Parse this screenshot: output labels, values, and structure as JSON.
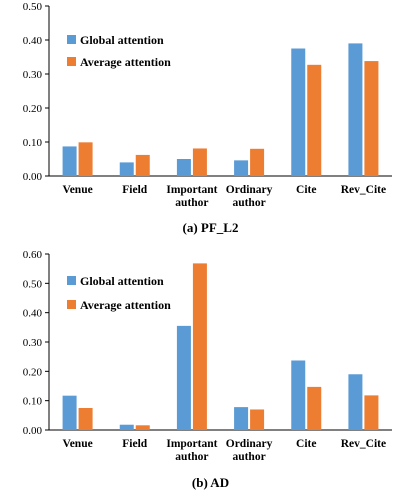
{
  "chart_data": [
    {
      "type": "bar",
      "caption": "(a) PF_L2",
      "categories": [
        "Venue",
        "Field",
        "Important author",
        "Ordinary author",
        "Cite",
        "Rev_Cite"
      ],
      "category_lines": [
        [
          "Venue"
        ],
        [
          "Field"
        ],
        [
          "Important",
          "author"
        ],
        [
          "Ordinary",
          "author"
        ],
        [
          "Cite"
        ],
        [
          "Rev_Cite"
        ]
      ],
      "series": [
        {
          "name": "Global attention",
          "color": "#5b9bd5",
          "values": [
            0.087,
            0.04,
            0.05,
            0.046,
            0.375,
            0.39
          ]
        },
        {
          "name": "Average attention",
          "color": "#ed7d31",
          "values": [
            0.099,
            0.062,
            0.081,
            0.08,
            0.327,
            0.338
          ]
        }
      ],
      "ylim": [
        0,
        0.5
      ],
      "yticks": [
        "0.00",
        "0.10",
        "0.20",
        "0.30",
        "0.40",
        "0.50"
      ],
      "grid": false,
      "legend": "top-left"
    },
    {
      "type": "bar",
      "caption": "(b) AD",
      "categories": [
        "Venue",
        "Field",
        "Important author",
        "Ordinary author",
        "Cite",
        "Rev_Cite"
      ],
      "category_lines": [
        [
          "Venue"
        ],
        [
          "Field"
        ],
        [
          "Important",
          "author"
        ],
        [
          "Ordinary",
          "author"
        ],
        [
          "Cite"
        ],
        [
          "Rev_Cite"
        ]
      ],
      "series": [
        {
          "name": "Global attention",
          "color": "#5b9bd5",
          "values": [
            0.117,
            0.018,
            0.355,
            0.078,
            0.237,
            0.19
          ]
        },
        {
          "name": "Average attention",
          "color": "#ed7d31",
          "values": [
            0.075,
            0.016,
            0.568,
            0.07,
            0.147,
            0.118
          ]
        }
      ],
      "ylim": [
        0,
        0.6
      ],
      "yticks": [
        "0.00",
        "0.10",
        "0.20",
        "0.30",
        "0.40",
        "0.50",
        "0.60"
      ],
      "grid": false,
      "legend": "top-left"
    }
  ]
}
